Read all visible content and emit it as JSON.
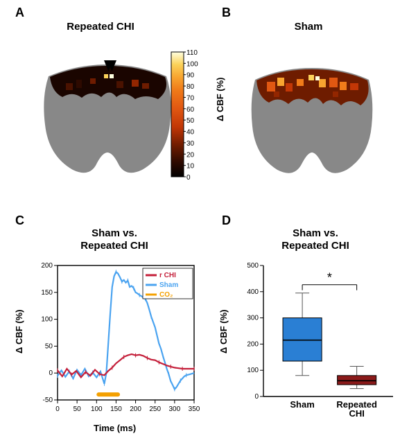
{
  "panelA": {
    "label": "A",
    "title": "Repeated CHI",
    "colorbar": {
      "ticks": [
        "0",
        "10",
        "20",
        "30",
        "40",
        "50",
        "60",
        "70",
        "80",
        "90",
        "100",
        "110"
      ],
      "colors": [
        "#000000",
        "#1a0500",
        "#2e0a00",
        "#4a1200",
        "#6e1c00",
        "#932600",
        "#c23706",
        "#e15812",
        "#f07c1a",
        "#f8a530",
        "#fbd25a",
        "#ffffe0"
      ],
      "label": "Δ CBF (%)"
    }
  },
  "panelB": {
    "label": "B",
    "title": "Sham",
    "colorbar_label": "Δ CBF (%)"
  },
  "panelC": {
    "label": "C",
    "title": "Sham vs.\nRepeated CHI",
    "xlabel": "Time (ms)",
    "ylabel": "Δ CBF (%)",
    "xlim": [
      0,
      350
    ],
    "ylim": [
      -50,
      200
    ],
    "xticks": [
      0,
      50,
      100,
      150,
      200,
      250,
      300,
      350
    ],
    "yticks": [
      -50,
      0,
      50,
      100,
      150,
      200
    ],
    "co2_bar": {
      "start": 100,
      "end": 160,
      "color": "#f4a000"
    },
    "legend": [
      {
        "label": "r CHI",
        "color": "#c41f3a"
      },
      {
        "label": "Sham",
        "color": "#4aa3f0"
      },
      {
        "label": "CO₂",
        "color": "#f4a000"
      }
    ],
    "series": {
      "sham": {
        "color": "#4aa3f0",
        "points": [
          [
            0,
            -5
          ],
          [
            10,
            5
          ],
          [
            20,
            -7
          ],
          [
            30,
            3
          ],
          [
            40,
            -10
          ],
          [
            50,
            6
          ],
          [
            60,
            -4
          ],
          [
            70,
            8
          ],
          [
            80,
            -6
          ],
          [
            90,
            1
          ],
          [
            100,
            -8
          ],
          [
            110,
            3
          ],
          [
            120,
            -20
          ],
          [
            125,
            0
          ],
          [
            130,
            55
          ],
          [
            135,
            110
          ],
          [
            140,
            160
          ],
          [
            145,
            180
          ],
          [
            150,
            188
          ],
          [
            155,
            185
          ],
          [
            160,
            178
          ],
          [
            165,
            170
          ],
          [
            170,
            173
          ],
          [
            175,
            168
          ],
          [
            180,
            172
          ],
          [
            185,
            160
          ],
          [
            190,
            162
          ],
          [
            195,
            158
          ],
          [
            200,
            150
          ],
          [
            205,
            148
          ],
          [
            210,
            145
          ],
          [
            215,
            143
          ],
          [
            220,
            140
          ],
          [
            225,
            138
          ],
          [
            230,
            130
          ],
          [
            235,
            118
          ],
          [
            240,
            105
          ],
          [
            245,
            95
          ],
          [
            250,
            85
          ],
          [
            255,
            70
          ],
          [
            260,
            55
          ],
          [
            265,
            45
          ],
          [
            270,
            32
          ],
          [
            275,
            20
          ],
          [
            280,
            8
          ],
          [
            285,
            -2
          ],
          [
            290,
            -15
          ],
          [
            295,
            -22
          ],
          [
            300,
            -30
          ],
          [
            305,
            -26
          ],
          [
            310,
            -20
          ],
          [
            315,
            -14
          ],
          [
            320,
            -10
          ],
          [
            325,
            -6
          ],
          [
            330,
            -4
          ],
          [
            340,
            -2
          ],
          [
            350,
            0
          ]
        ]
      },
      "rchi": {
        "color": "#c41f3a",
        "points": [
          [
            0,
            5
          ],
          [
            12,
            -6
          ],
          [
            24,
            8
          ],
          [
            36,
            -3
          ],
          [
            48,
            4
          ],
          [
            60,
            -8
          ],
          [
            72,
            2
          ],
          [
            84,
            -5
          ],
          [
            96,
            6
          ],
          [
            108,
            -2
          ],
          [
            120,
            -4
          ],
          [
            130,
            4
          ],
          [
            140,
            10
          ],
          [
            150,
            18
          ],
          [
            160,
            24
          ],
          [
            170,
            30
          ],
          [
            180,
            33
          ],
          [
            190,
            35
          ],
          [
            200,
            33
          ],
          [
            210,
            34
          ],
          [
            220,
            32
          ],
          [
            230,
            28
          ],
          [
            240,
            25
          ],
          [
            250,
            24
          ],
          [
            260,
            20
          ],
          [
            270,
            17
          ],
          [
            280,
            14
          ],
          [
            290,
            12
          ],
          [
            300,
            10
          ],
          [
            310,
            9
          ],
          [
            320,
            8
          ],
          [
            330,
            8
          ],
          [
            340,
            8
          ],
          [
            350,
            8
          ]
        ]
      }
    }
  },
  "panelD": {
    "label": "D",
    "title": "Sham vs.\nRepeated CHI",
    "ylabel": "Δ CBF (%)",
    "ylim": [
      0,
      500
    ],
    "yticks": [
      0,
      100,
      200,
      300,
      400,
      500
    ],
    "categories": [
      "Sham",
      "Repeated\nCHI"
    ],
    "sig_marker": "*",
    "boxes": {
      "sham": {
        "color": "#2a7fd4",
        "q1": 135,
        "median": 215,
        "q3": 300,
        "whisker_low": 80,
        "whisker_high": 395
      },
      "rchi": {
        "color": "#8b1a1a",
        "q1": 45,
        "median": 60,
        "q3": 80,
        "whisker_low": 30,
        "whisker_high": 115
      }
    }
  }
}
